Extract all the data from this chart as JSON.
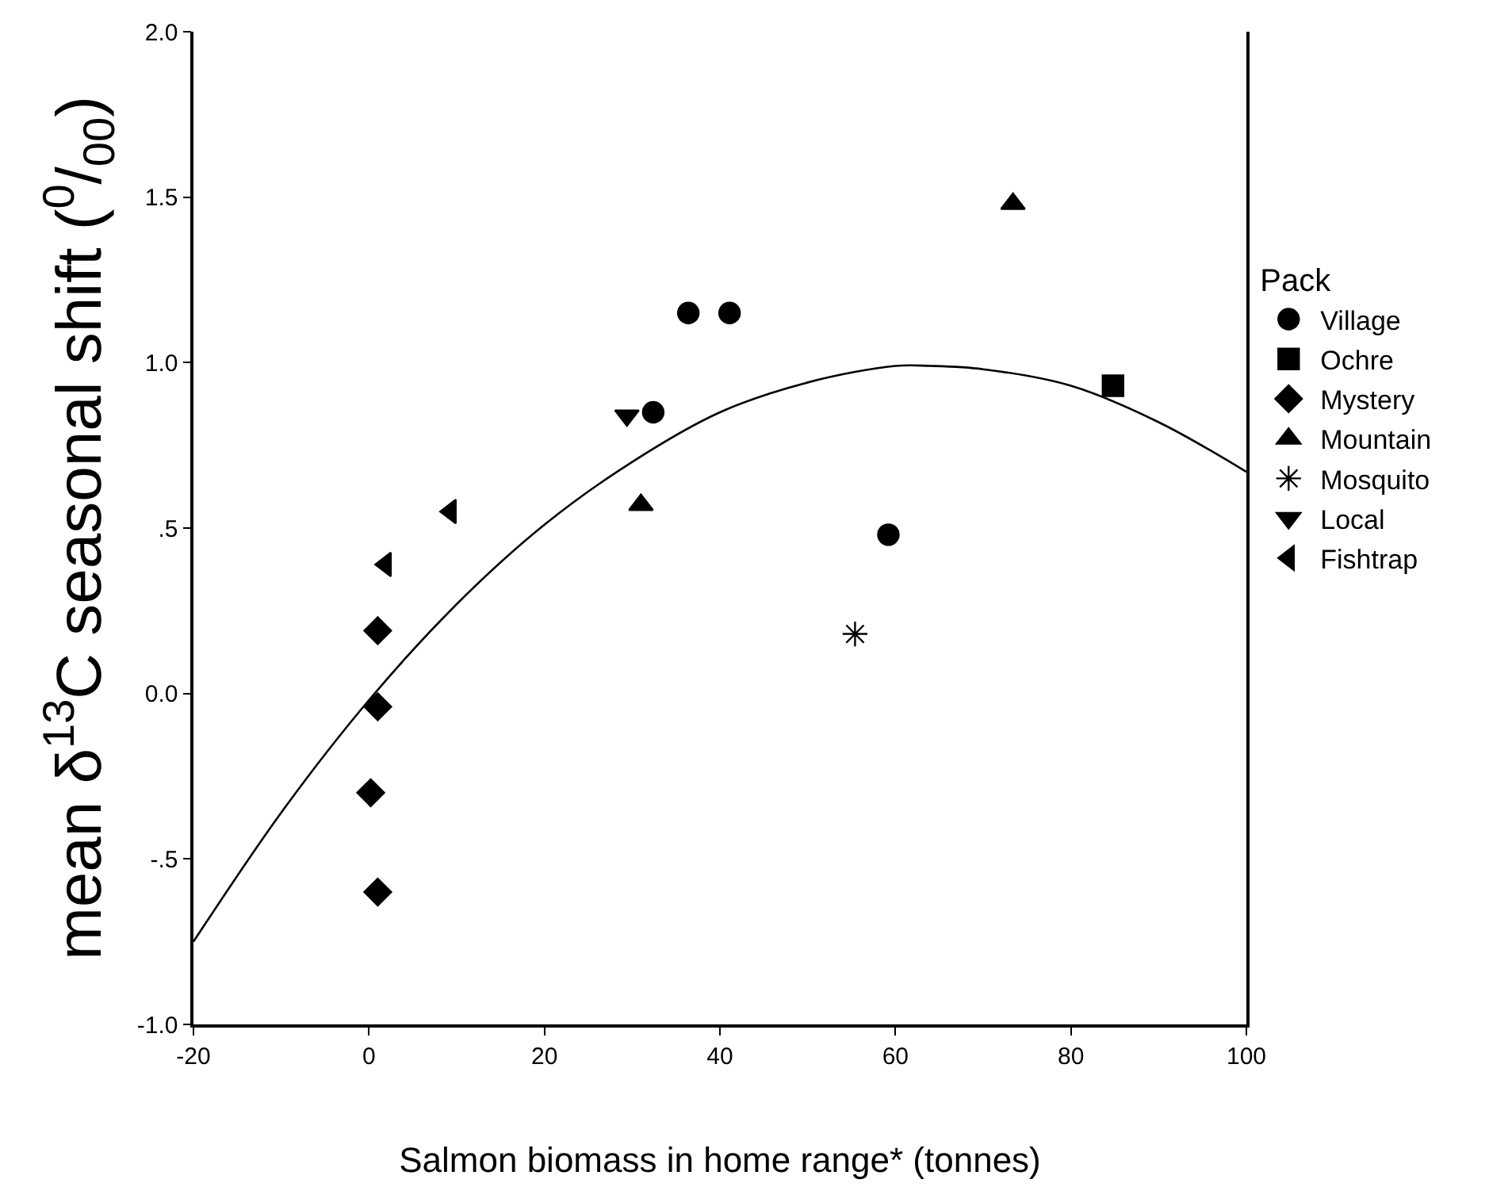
{
  "chart_data": {
    "type": "scatter",
    "xlabel": "Salmon biomass in home range* (tonnes)",
    "ylabel": "mean δ$^{13}$C seasonal shift ($^{0}$/$_{00}$)",
    "legend_title": "Pack",
    "legend": "right",
    "xlim": [
      -20,
      100
    ],
    "xticks": [
      -20,
      0,
      20,
      40,
      60,
      80,
      100
    ],
    "ylim": [
      -1.0,
      2.0
    ],
    "yticks": [
      {
        "value": -1.0,
        "label": "-1.0"
      },
      {
        "value": -0.5,
        "label": "-.5"
      },
      {
        "value": 0,
        "label": "0.0"
      },
      {
        "value": 0.5,
        "label": ".5"
      },
      {
        "value": 1.0,
        "label": "1.0"
      },
      {
        "value": 1.5,
        "label": "1.5"
      },
      {
        "value": 2.0,
        "label": "2.0"
      }
    ],
    "series": [
      {
        "name": "Village",
        "color": "#000000",
        "marker": "circle",
        "x": [
          36.4,
          41.1,
          32.4,
          59.2
        ],
        "values": [
          1.15,
          1.15,
          0.85,
          0.48
        ]
      },
      {
        "name": "Ochre",
        "color": "#000000",
        "marker": "square",
        "x": [
          84.8
        ],
        "values": [
          0.93
        ]
      },
      {
        "name": "Mystery",
        "color": "#000000",
        "marker": "diamond",
        "x": [
          1.0,
          1.0,
          0.2,
          1.0
        ],
        "values": [
          0.19,
          -0.04,
          -0.3,
          -0.6
        ]
      },
      {
        "name": "Mountain",
        "color": "#000000",
        "marker": "triangle",
        "x": [
          73.4,
          31.0
        ],
        "values": [
          1.48,
          0.57
        ]
      },
      {
        "name": "Mosquito",
        "color": "#000000",
        "marker": "cross",
        "x": [
          55.4
        ],
        "values": [
          0.18
        ]
      },
      {
        "name": "Local",
        "color": "#000000",
        "marker": "triangle-down",
        "x": [
          29.4
        ],
        "values": [
          0.84
        ]
      },
      {
        "name": "Fishtrap",
        "color": "#000000",
        "marker": "triangle-left",
        "x": [
          9.3,
          1.9
        ],
        "values": [
          0.55,
          0.39
        ]
      },
      {
        "type": "line",
        "color": "#000000",
        "marker": "none",
        "line_style": "solid",
        "x": [
          -20,
          -10,
          0,
          10,
          20,
          30,
          40,
          50,
          60,
          64,
          70,
          80,
          90,
          100
        ],
        "values": [
          -0.75,
          -0.36,
          -0.02,
          0.27,
          0.51,
          0.7,
          0.85,
          0.94,
          0.99,
          0.99,
          0.98,
          0.93,
          0.82,
          0.67
        ]
      }
    ]
  }
}
